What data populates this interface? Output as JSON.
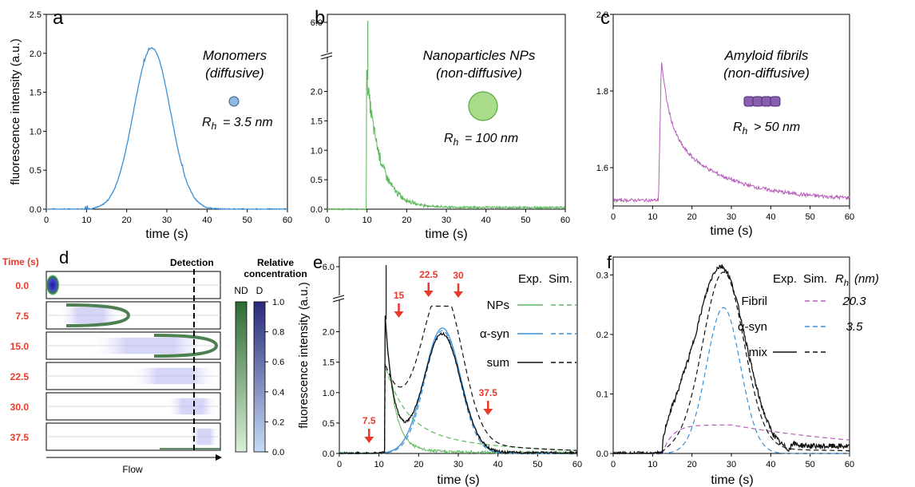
{
  "panels": {
    "a": {
      "letter": "a",
      "title_line1": "Monomers",
      "title_line2": "(diffusive)",
      "rh": "= 3.5 nm",
      "ylabel": "fluorescence intensity (a.u.)",
      "xlabel": "time (s)",
      "yticks": [
        "0.0",
        "0.5",
        "1.0",
        "1.5",
        "2.0",
        "2.5"
      ],
      "xticks": [
        "0",
        "10",
        "20",
        "30",
        "40",
        "50",
        "60"
      ]
    },
    "b": {
      "letter": "b",
      "title_line1": "Nanoparticles NPs",
      "title_line2": "(non-diffusive)",
      "rh": "= 100 nm",
      "xlabel": "time (s)",
      "yticks": [
        "0.0",
        "0.5",
        "1.0",
        "1.5",
        "2.0",
        "6.0"
      ],
      "xticks": [
        "0",
        "10",
        "20",
        "30",
        "40",
        "50",
        "60"
      ]
    },
    "c": {
      "letter": "c",
      "title_line1": "Amyloid fibrils",
      "title_line2": "(non-diffusive)",
      "rh": "> 50 nm",
      "xlabel": "time (s)",
      "yticks": [
        "1.6",
        "1.8",
        "2.0"
      ],
      "xticks": [
        "0",
        "10",
        "20",
        "30",
        "40",
        "50",
        "60"
      ]
    },
    "d": {
      "letter": "d",
      "time_header": "Time (s)",
      "detection": "Detection",
      "colorbar_title_line1": "Relative",
      "colorbar_title_line2": "concentration",
      "nd": "ND",
      "d": "D",
      "flow": "Flow",
      "rows": [
        "0.0",
        "7.5",
        "15.0",
        "22.5",
        "30.0",
        "37.5"
      ],
      "cbar_ticks": [
        "0.0",
        "0.2",
        "0.4",
        "0.6",
        "0.8",
        "1.0"
      ]
    },
    "e": {
      "letter": "e",
      "ylabel": "fluorescence intensity (a.u.)",
      "xlabel": "time (s)",
      "yticks": [
        "0.0",
        "0.5",
        "1.0",
        "1.5",
        "2.0",
        "6.0"
      ],
      "xticks": [
        "0",
        "10",
        "20",
        "30",
        "40",
        "50",
        "60"
      ],
      "legend_head_exp": "Exp.",
      "legend_head_sim": "Sim.",
      "legend": [
        "NPs",
        "α-syn",
        "sum"
      ],
      "arrow_labels": [
        "7.5",
        "15",
        "22.5",
        "30",
        "37.5"
      ]
    },
    "f": {
      "letter": "f",
      "xlabel": "time (s)",
      "yticks": [
        "0.0",
        "0.1",
        "0.2",
        "0.3"
      ],
      "xticks": [
        "0",
        "10",
        "20",
        "30",
        "40",
        "50",
        "60"
      ],
      "legend_head_exp": "Exp.",
      "legend_head_sim": "Sim.",
      "legend_head_rh": "(nm)",
      "legend": [
        "Fibril",
        "α-syn",
        "mix"
      ],
      "legend_rh": [
        "20.3",
        "3.5"
      ]
    }
  },
  "colors": {
    "monomer": "#3a8fd6",
    "np": "#5cb85c",
    "fibril": "#b45cb8",
    "sum": "#111111",
    "arrow": "#e8392a",
    "nd_dark": "#2e6b34",
    "d_dark": "#2a2a7a"
  },
  "chart_data": [
    {
      "type": "line",
      "panel": "a",
      "xlim": [
        0,
        60
      ],
      "ylim": [
        0,
        2.5
      ],
      "series": [
        {
          "peak_time": 26.3,
          "peak_value": 2.07,
          "sigma_s": 4.6
        }
      ]
    },
    {
      "type": "line",
      "panel": "b",
      "xlim": [
        0,
        60
      ],
      "ylim": [
        0,
        2.4
      ],
      "y_break_label": 6.0,
      "series": [
        {
          "onset_time": 9.8,
          "peak_value": 2.3,
          "spike_value": 6.0,
          "decay_s": 3.5
        }
      ]
    },
    {
      "type": "line",
      "panel": "c",
      "xlim": [
        0,
        60
      ],
      "ylim": [
        1.5,
        2.0
      ],
      "series": [
        {
          "baseline": 1.515,
          "onset_time": 11.5,
          "peak_time": 12.3,
          "peak_value": 1.91
        }
      ]
    },
    {
      "type": "heatmap",
      "panel": "d",
      "times": [
        0.0,
        7.5,
        15.0,
        22.5,
        30.0,
        37.5
      ],
      "clim": [
        0.0,
        1.0
      ]
    },
    {
      "type": "line",
      "panel": "e",
      "xlim": [
        0,
        60
      ],
      "ylim": [
        0,
        2.4
      ],
      "y_break_label": 6.0,
      "series": [
        {
          "name": "NPs",
          "kind": "exp+sim"
        },
        {
          "name": "α-syn",
          "kind": "exp+sim",
          "peak_time": 26,
          "peak_value": 2.06
        },
        {
          "name": "sum",
          "kind": "exp+sim",
          "peak_value_exp": 1.95,
          "peak_value_sim": 2.42
        }
      ],
      "arrows_at_times": [
        7.5,
        15,
        22.5,
        30,
        37.5
      ]
    },
    {
      "type": "line",
      "panel": "f",
      "xlim": [
        0,
        60
      ],
      "ylim": [
        0,
        0.33
      ],
      "series": [
        {
          "name": "Fibril",
          "rh_nm": 20.3,
          "kind": "sim"
        },
        {
          "name": "α-syn",
          "rh_nm": 3.5,
          "kind": "sim",
          "peak_time": 28,
          "peak_value": 0.245
        },
        {
          "name": "mix",
          "kind": "exp+sim",
          "peak_time": 27.5,
          "peak_value": 0.305
        }
      ]
    }
  ]
}
